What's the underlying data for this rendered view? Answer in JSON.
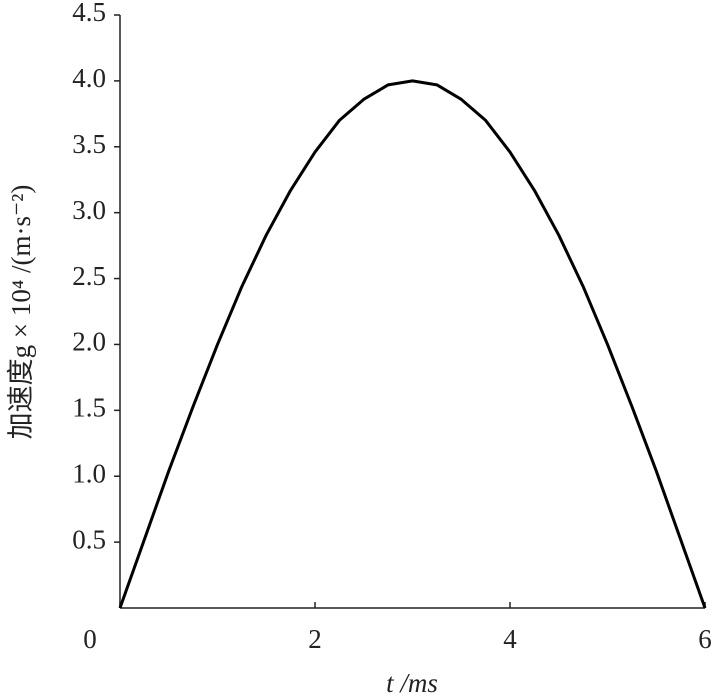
{
  "chart_data": {
    "type": "line",
    "x_label": "t /ms",
    "y_label": "加速度g × 10⁴ /(m·s⁻²)",
    "x": [
      0,
      0.25,
      0.5,
      0.75,
      1,
      1.25,
      1.5,
      1.75,
      2,
      2.25,
      2.5,
      2.75,
      3,
      3.25,
      3.5,
      3.75,
      4,
      4.25,
      4.5,
      4.75,
      5,
      5.25,
      5.5,
      5.75,
      6
    ],
    "series": [
      {
        "color": "#000000",
        "values": [
          0,
          0.52,
          1.04,
          1.53,
          2.0,
          2.44,
          2.83,
          3.17,
          3.46,
          3.7,
          3.86,
          3.97,
          4.0,
          3.97,
          3.86,
          3.7,
          3.46,
          3.17,
          2.83,
          2.44,
          2.0,
          1.53,
          1.04,
          0.52,
          0
        ]
      }
    ],
    "xlim": [
      0,
      6
    ],
    "xticks": [
      0,
      2,
      4,
      6
    ],
    "ylim": [
      0,
      4.5
    ],
    "yticks": [
      0.5,
      {
        "value": 1,
        "label": "1.0"
      },
      1.5,
      {
        "value": 2,
        "label": "2.0"
      },
      2.5,
      {
        "value": 3,
        "label": "3.0"
      },
      3.5,
      {
        "value": 4,
        "label": "4.0"
      },
      4.5
    ]
  }
}
